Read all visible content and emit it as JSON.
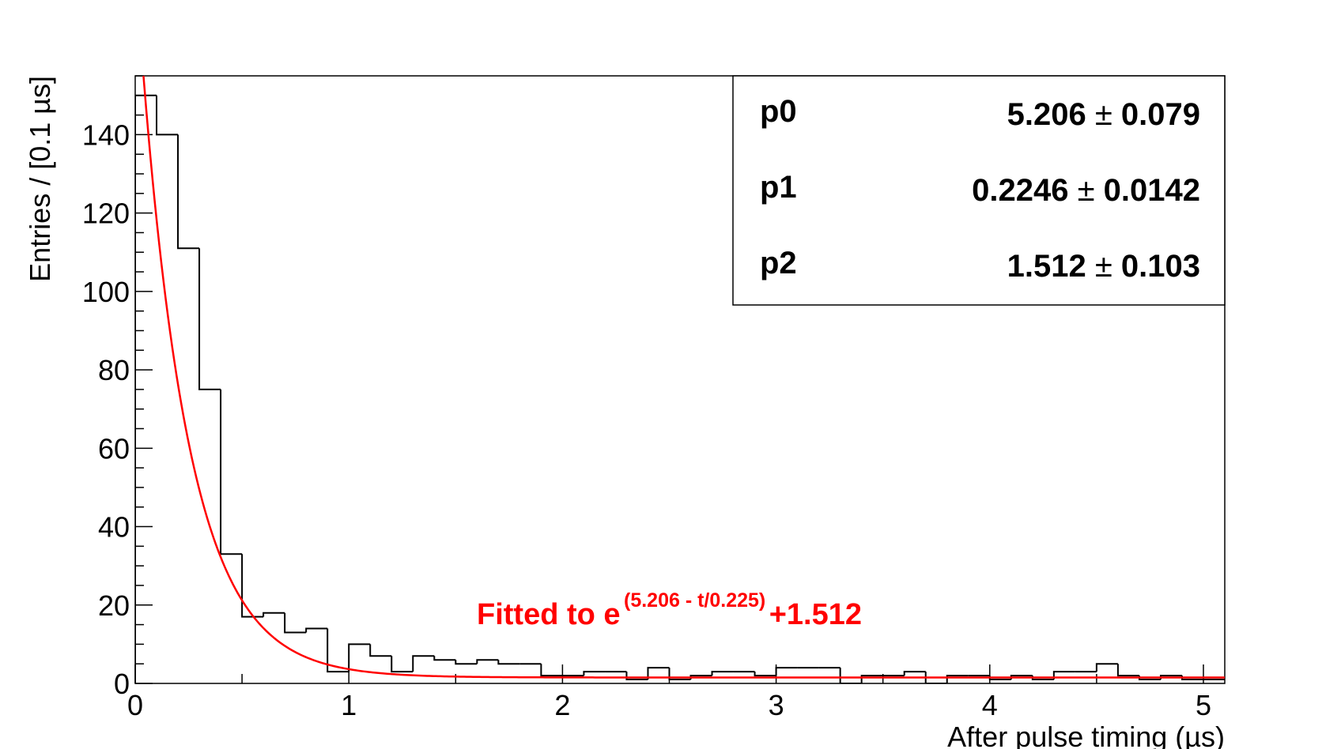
{
  "chart_data": {
    "type": "bar",
    "histogram_bin_width": 0.1,
    "bin_edges_start": 0,
    "counts": [
      150,
      140,
      111,
      75,
      33,
      17,
      18,
      13,
      14,
      3,
      10,
      7,
      3,
      7,
      6,
      5,
      6,
      5,
      5,
      2,
      2,
      3,
      3,
      1,
      4,
      1,
      2,
      3,
      3,
      2,
      4,
      4,
      4,
      0,
      2,
      2,
      3,
      0,
      2,
      2,
      1,
      2,
      1,
      3,
      3,
      5,
      2,
      1,
      2,
      1,
      1
    ],
    "xlabel": "After pulse timing (µs)",
    "ylabel": "Entries / [0.1 µs]",
    "xlim": [
      0,
      5.1
    ],
    "ylim": [
      0,
      155
    ],
    "x_ticks": [
      0,
      1,
      2,
      3,
      4,
      5
    ],
    "y_ticks": [
      0,
      20,
      40,
      60,
      80,
      100,
      120,
      140
    ],
    "fit_curve": {
      "formula": "exp(p0 - t/p1) + p2",
      "p0": 5.206,
      "p1": 0.2246,
      "p2": 1.512,
      "color": "#ff0000"
    },
    "annotation": {
      "prefix": "Fitted to e",
      "exponent": "(5.206 - t/0.225)",
      "suffix": "+1.512",
      "color": "#ff0000"
    },
    "stats_box": [
      {
        "name": "p0",
        "value": "5.206",
        "error": "0.079"
      },
      {
        "name": "p1",
        "value": "0.2246",
        "error": "0.0142"
      },
      {
        "name": "p2",
        "value": "1.512",
        "error": "0.103"
      }
    ],
    "pm_symbol": "±",
    "histogram_color": "#000000"
  }
}
